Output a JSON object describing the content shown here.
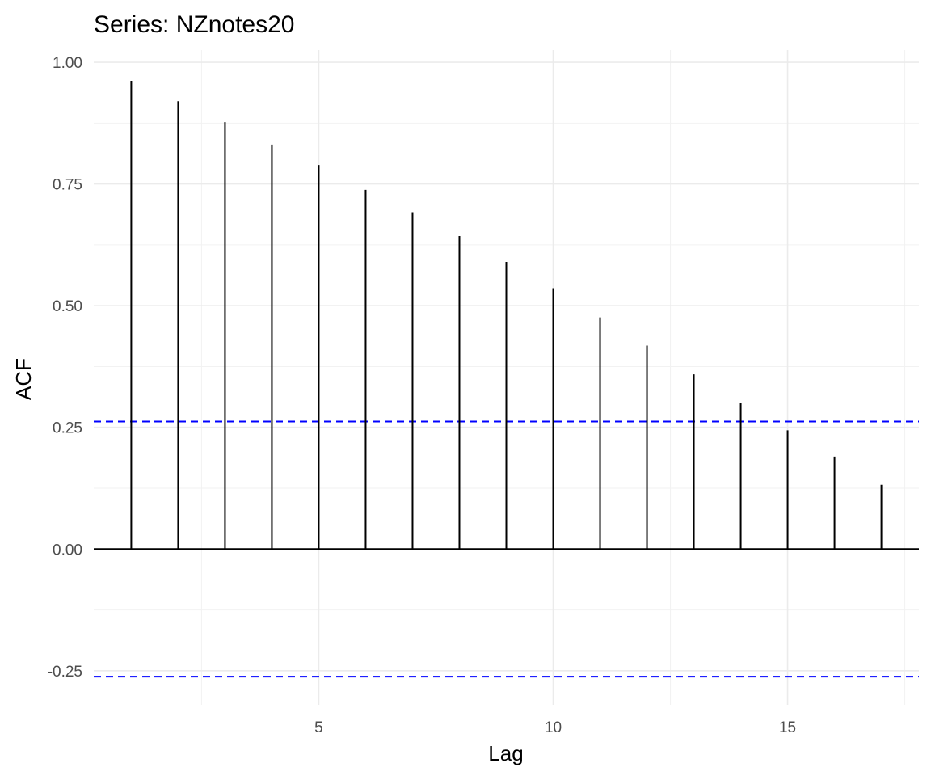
{
  "chart_data": {
    "type": "bar",
    "title": "Series: NZnotes20",
    "xlabel": "Lag",
    "ylabel": "ACF",
    "x": [
      1,
      2,
      3,
      4,
      5,
      6,
      7,
      8,
      9,
      10,
      11,
      12,
      13,
      14,
      15,
      16,
      17
    ],
    "values": [
      0.962,
      0.92,
      0.877,
      0.831,
      0.789,
      0.738,
      0.692,
      0.643,
      0.59,
      0.536,
      0.476,
      0.418,
      0.359,
      0.3,
      0.244,
      0.19,
      0.132
    ],
    "confidence_bounds": [
      0.262,
      -0.262
    ],
    "xlim": [
      0.2,
      17.8
    ],
    "ylim": [
      -0.32,
      1.025
    ],
    "x_ticks": [
      5,
      10,
      15
    ],
    "x_tick_labels": [
      "5",
      "10",
      "15"
    ],
    "x_minor_ticks": [
      2.5,
      7.5,
      12.5,
      17.5
    ],
    "y_ticks": [
      -0.25,
      0,
      0.25,
      0.5,
      0.75,
      1
    ],
    "y_tick_labels": [
      "-0.25",
      "0.00",
      "0.25",
      "0.50",
      "0.75",
      "1.00"
    ],
    "y_minor_ticks": [
      -0.125,
      0.125,
      0.375,
      0.625,
      0.875
    ],
    "grid": true,
    "legend": "none",
    "colors": {
      "bars": "#000000",
      "confidence_lines": "#0000ff",
      "grid": "#ebebeb"
    }
  }
}
